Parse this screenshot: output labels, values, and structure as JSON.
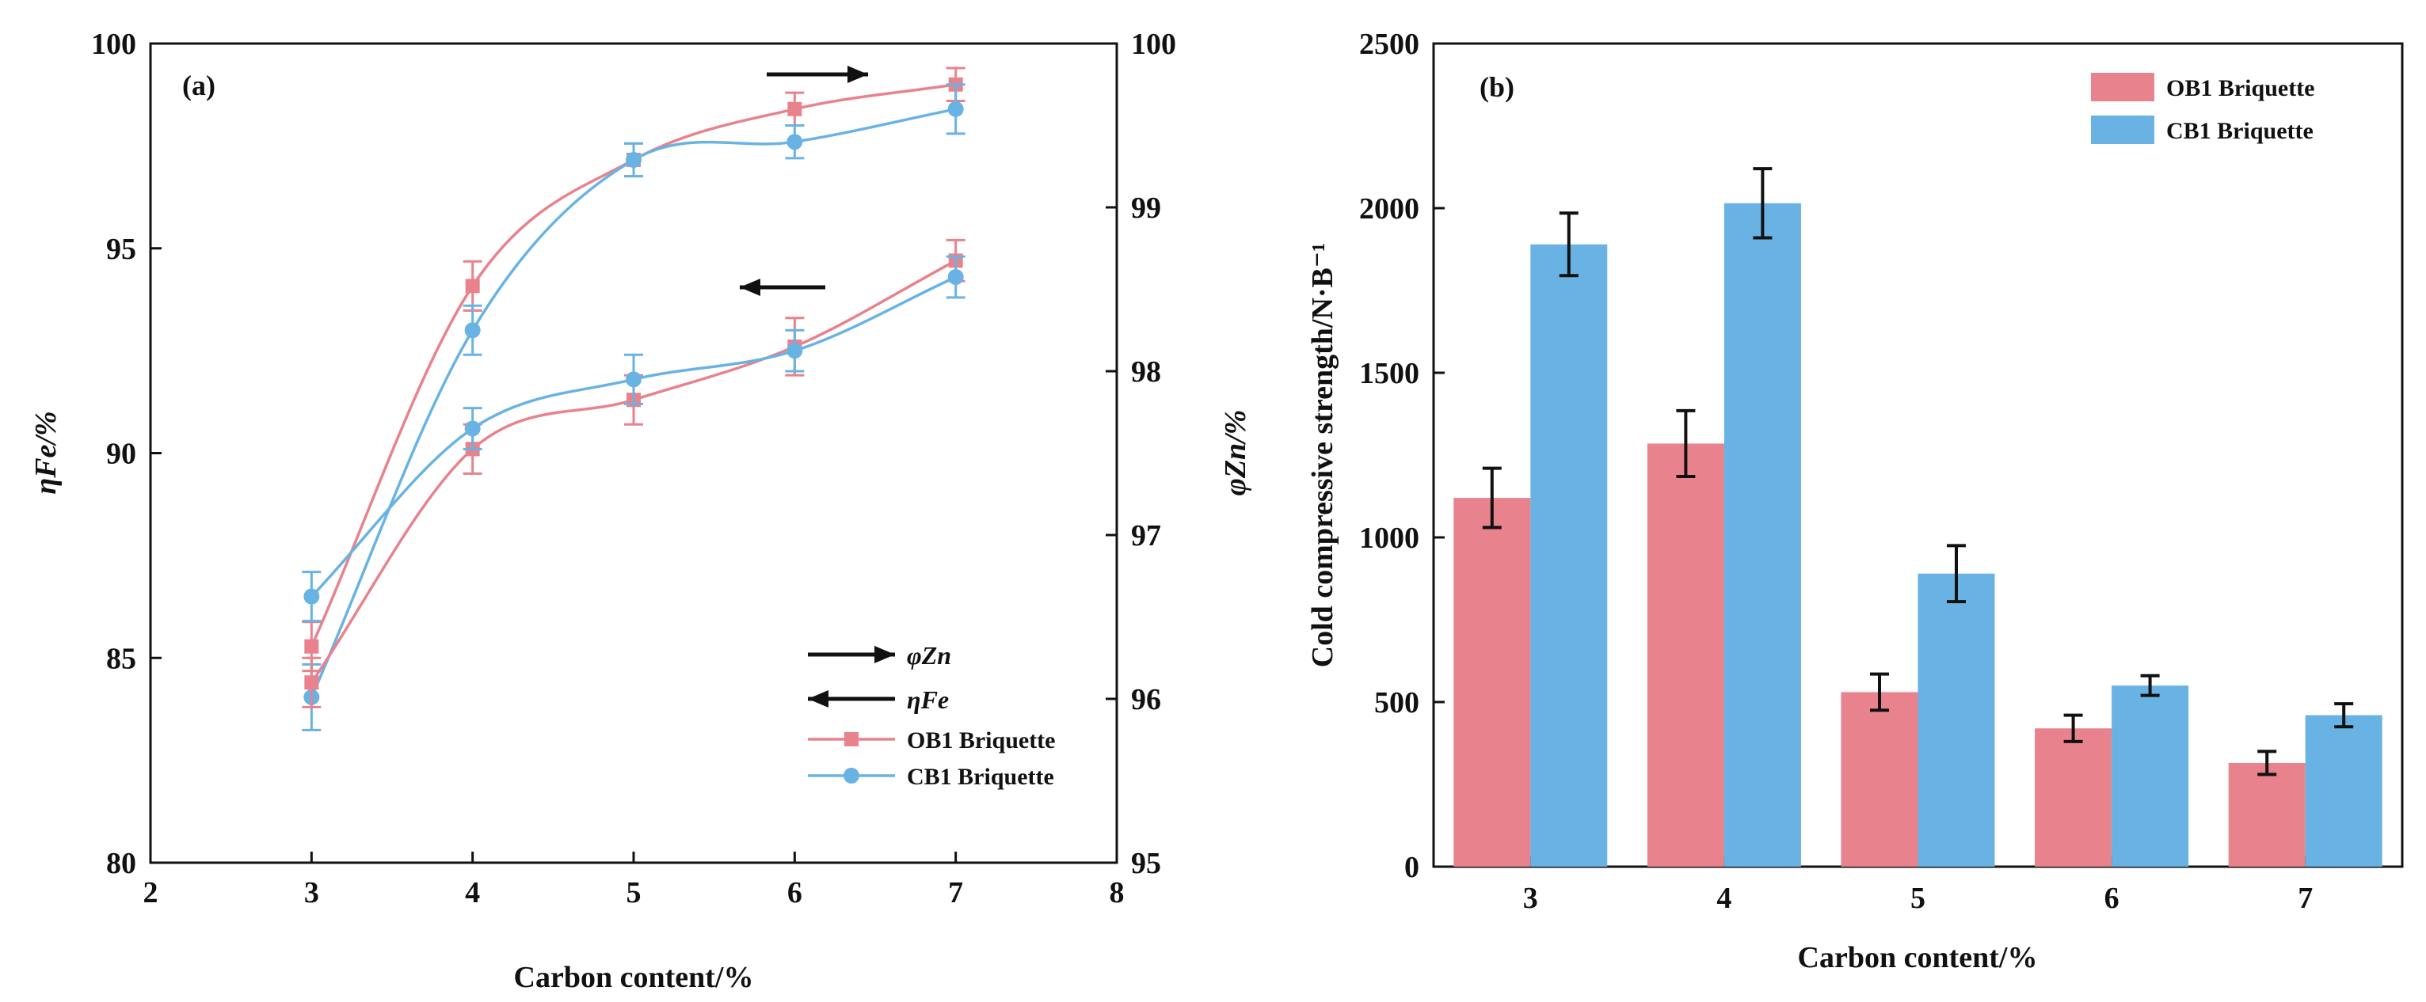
{
  "chart_data": [
    {
      "panel": "(a)",
      "type": "line",
      "xlabel": "Carbon content/%",
      "ylabel_left": "ηFe/%",
      "ylabel_right": "φZn/%",
      "xlim": [
        2,
        8
      ],
      "ylim_left": [
        80,
        100
      ],
      "ylim_right": [
        95,
        100
      ],
      "x_ticks": [
        "2",
        "3",
        "4",
        "5",
        "6",
        "7",
        "8"
      ],
      "y_ticks_left": [
        "80",
        "85",
        "90",
        "95",
        "100"
      ],
      "y_ticks_right": [
        "95",
        "96",
        "97",
        "98",
        "99",
        "100"
      ],
      "x": [
        3,
        4,
        5,
        6,
        7
      ],
      "series": [
        {
          "name": "OB1 Briquette",
          "metric": "φZn",
          "axis": "right",
          "color": "#e8828c",
          "marker": "square",
          "values": [
            96.32,
            98.52,
            99.29,
            99.6,
            99.75
          ],
          "errors": [
            0.15,
            0.15,
            0.1,
            0.1,
            0.1
          ]
        },
        {
          "name": "CB1 Briquette",
          "metric": "φZn",
          "axis": "right",
          "color": "#68b3e3",
          "marker": "circle",
          "values": [
            96.01,
            98.25,
            99.29,
            99.4,
            99.6
          ],
          "errors": [
            0.2,
            0.15,
            0.1,
            0.1,
            0.15
          ]
        },
        {
          "name": "OB1 Briquette",
          "metric": "ηFe",
          "axis": "left",
          "color": "#e8828c",
          "marker": "square",
          "values": [
            84.4,
            90.1,
            91.3,
            92.6,
            94.7
          ],
          "errors": [
            0.6,
            0.6,
            0.6,
            0.7,
            0.5
          ]
        },
        {
          "name": "CB1 Briquette",
          "metric": "ηFe",
          "axis": "left",
          "color": "#68b3e3",
          "marker": "circle",
          "values": [
            86.5,
            90.6,
            91.8,
            92.5,
            94.3
          ],
          "errors": [
            0.6,
            0.5,
            0.6,
            0.5,
            0.5
          ]
        }
      ],
      "legend": {
        "position": "bottom-right",
        "arrow_labels": [
          "φZn",
          "ηFe"
        ],
        "entries": [
          "OB1 Briquette",
          "CB1 Briquette"
        ]
      }
    },
    {
      "panel": "(b)",
      "type": "bar",
      "xlabel": "Carbon content/%",
      "ylabel": "Cold compressive strength/N·B⁻¹",
      "ylim": [
        0,
        2500
      ],
      "y_ticks": [
        "0",
        "500",
        "1000",
        "1500",
        "2000",
        "2500"
      ],
      "categories": [
        "3",
        "4",
        "5",
        "6",
        "7"
      ],
      "series": [
        {
          "name": "OB1 Briquette",
          "color": "#e8828c",
          "values": [
            1120,
            1285,
            530,
            420,
            315
          ],
          "errors": [
            90,
            100,
            55,
            40,
            35
          ]
        },
        {
          "name": "CB1 Briquette",
          "color": "#68b3e3",
          "values": [
            1890,
            2015,
            890,
            550,
            460
          ],
          "errors": [
            95,
            105,
            85,
            30,
            35
          ]
        }
      ],
      "legend": {
        "position": "top-right",
        "entries": [
          "OB1 Briquette",
          "CB1 Briquette"
        ]
      }
    }
  ]
}
